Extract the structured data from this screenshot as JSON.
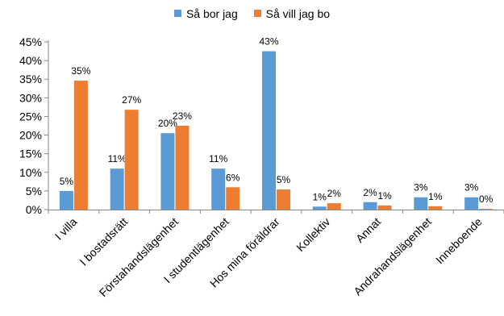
{
  "chart_data": {
    "type": "bar",
    "title": "",
    "xlabel": "",
    "ylabel": "",
    "ylim": [
      0,
      45
    ],
    "yticks": [
      "0%",
      "5%",
      "10%",
      "15%",
      "20%",
      "25%",
      "30%",
      "35%",
      "40%",
      "45%"
    ],
    "categories": [
      "I villa",
      "I bostadsrätt",
      "Förstahandslägenhet",
      "I studentlägenhet",
      "Hos mina föräldrar",
      "Kollektiv",
      "Annat",
      "Andrahandslägenhet",
      "Inneboende"
    ],
    "series": [
      {
        "name": "Så bor jag",
        "color": "#5B9BD5",
        "values": [
          5,
          11,
          20.5,
          11,
          42.5,
          0.8,
          2,
          3.3,
          3.3
        ],
        "labels": [
          "5%",
          "11%",
          "20%",
          "11%",
          "43%",
          "1%",
          "2%",
          "3%",
          "3%"
        ]
      },
      {
        "name": "Så vill jag bo",
        "color": "#ED7D31",
        "values": [
          34.6,
          26.8,
          22.5,
          6,
          5.4,
          1.7,
          1.1,
          0.9,
          0.2
        ],
        "labels": [
          "35%",
          "27%",
          "23%",
          "6%",
          "5%",
          "2%",
          "1%",
          "1%",
          "0%"
        ]
      }
    ],
    "legend_position": "top",
    "grid": false
  }
}
